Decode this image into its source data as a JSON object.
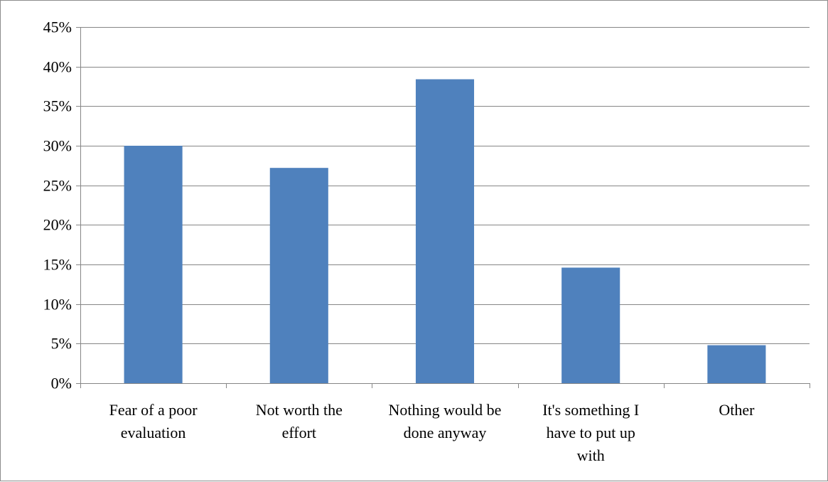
{
  "chart_data": {
    "type": "bar",
    "categories": [
      [
        "Fear of a poor",
        "evaluation"
      ],
      [
        "Not worth the",
        "effort"
      ],
      [
        "Nothing would be",
        "done anyway"
      ],
      [
        "It's something I",
        "have to put up",
        "with"
      ],
      [
        "Other"
      ]
    ],
    "values": [
      0.3,
      0.272,
      0.384,
      0.146,
      0.048
    ],
    "y_ticks": [
      "0%",
      "5%",
      "10%",
      "15%",
      "20%",
      "25%",
      "30%",
      "35%",
      "40%",
      "45%"
    ],
    "ylim": [
      0,
      0.45
    ],
    "y_tick_step": 0.05,
    "grid": true,
    "legend": "none",
    "bar_color": "#4f81bd",
    "grid_color": "#868686"
  }
}
